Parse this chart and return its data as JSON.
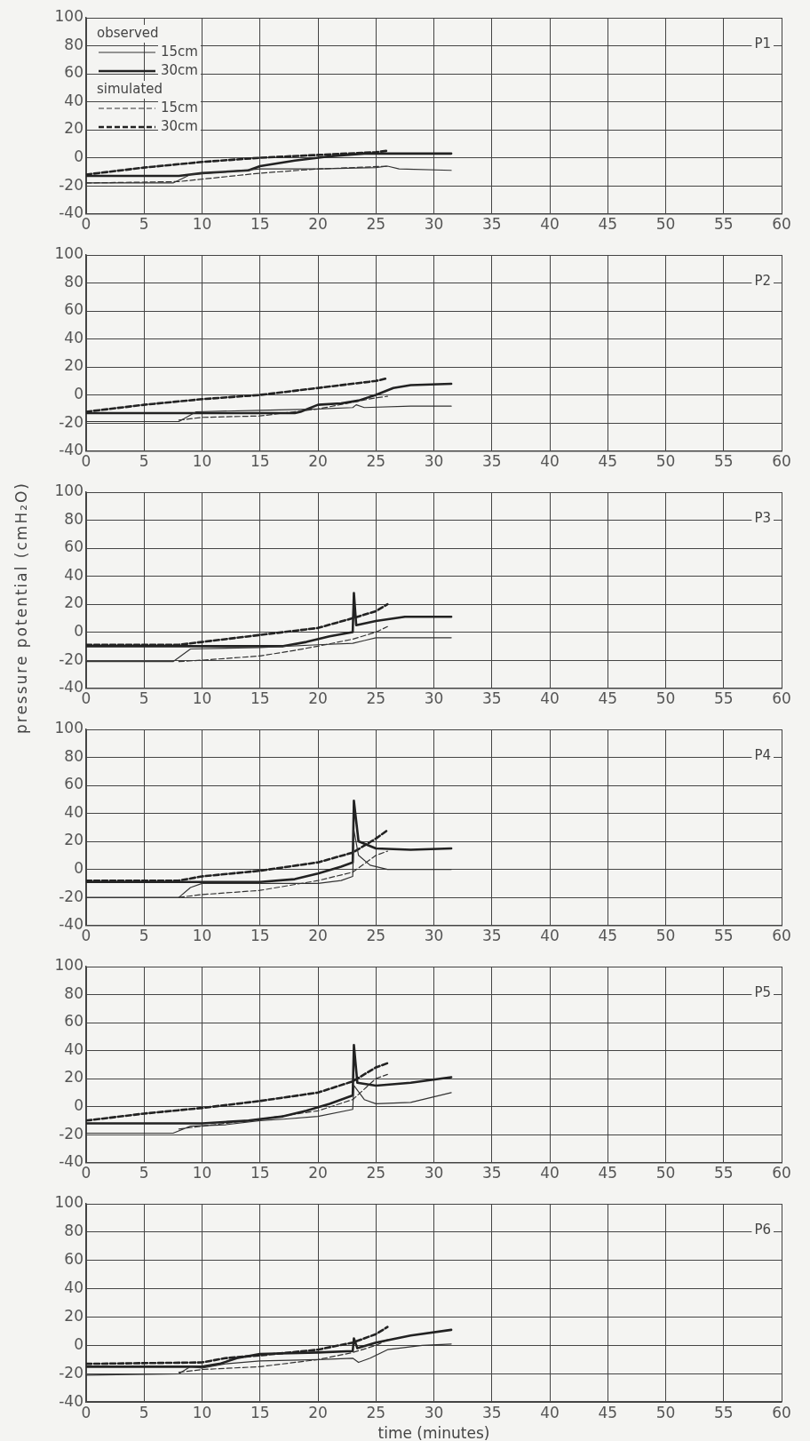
{
  "chart_data": [
    {
      "type": "line",
      "title": "P1",
      "xlim": [
        0,
        60
      ],
      "ylim": [
        -40,
        100
      ],
      "xticks": [
        0,
        5,
        10,
        15,
        20,
        25,
        30,
        35,
        40,
        45,
        50,
        55,
        60
      ],
      "yticks": [
        -40,
        -20,
        0,
        20,
        40,
        60,
        80,
        100
      ],
      "grid": true,
      "legend": "top left",
      "annotations": [
        "observed",
        "simulated"
      ],
      "series": [
        {
          "name": "15cm",
          "color": "#333333",
          "line_style": "solid",
          "x": [
            0,
            7.5,
            9,
            12,
            15,
            20,
            25,
            26,
            27,
            31.5
          ],
          "values": [
            -18,
            -18,
            -12,
            -10,
            -8,
            -8,
            -7,
            -6,
            -8,
            -9
          ]
        },
        {
          "name": "30cm",
          "color": "#222222",
          "line_style": "solid",
          "x": [
            0,
            8,
            10,
            14,
            15,
            18,
            21,
            24,
            31.5
          ],
          "values": [
            -13,
            -13,
            -11,
            -9,
            -6,
            -2,
            1,
            3,
            3
          ]
        },
        {
          "name": "15cm",
          "color": "#333333",
          "line_style": "dashed",
          "x": [
            0,
            8,
            15,
            20,
            26
          ],
          "values": [
            -18,
            -17,
            -11,
            -8,
            -6
          ]
        },
        {
          "name": "30cm",
          "color": "#222222",
          "line_style": "dashed",
          "x": [
            0,
            5,
            10,
            15,
            20,
            25,
            26
          ],
          "values": [
            -12,
            -7,
            -3,
            0,
            2,
            4,
            5
          ]
        }
      ]
    },
    {
      "type": "line",
      "title": "P2",
      "xlim": [
        0,
        60
      ],
      "ylim": [
        -40,
        100
      ],
      "xticks": [
        0,
        5,
        10,
        15,
        20,
        25,
        30,
        35,
        40,
        45,
        50,
        55,
        60
      ],
      "yticks": [
        -40,
        -20,
        0,
        20,
        40,
        60,
        80,
        100
      ],
      "grid": true,
      "series": [
        {
          "color": "#333333",
          "line_style": "solid",
          "x": [
            0,
            8,
            9.5,
            15,
            20,
            23,
            23.3,
            24,
            28,
            31.5
          ],
          "values": [
            -19,
            -19,
            -12,
            -11,
            -10,
            -9,
            -7,
            -9,
            -8,
            -8
          ]
        },
        {
          "color": "#222222",
          "line_style": "solid",
          "x": [
            0,
            18,
            18.5,
            20,
            22,
            23.5,
            25,
            26.5,
            28,
            31.5
          ],
          "values": [
            -13,
            -13,
            -12,
            -7,
            -6,
            -4,
            0,
            5,
            7,
            8
          ]
        },
        {
          "color": "#333333",
          "line_style": "dashed",
          "x": [
            8,
            10,
            15,
            20,
            25,
            26
          ],
          "values": [
            -18,
            -16,
            -15,
            -10,
            -2,
            -1
          ]
        },
        {
          "color": "#222222",
          "line_style": "dashed",
          "x": [
            0,
            5,
            10,
            15,
            20,
            25,
            26
          ],
          "values": [
            -12,
            -7,
            -3,
            0,
            5,
            10,
            12
          ]
        }
      ]
    },
    {
      "type": "line",
      "title": "P3",
      "ylabel": "pressure potential (cmH₂O)",
      "xlim": [
        0,
        60
      ],
      "ylim": [
        -40,
        100
      ],
      "xticks": [
        0,
        5,
        10,
        15,
        20,
        25,
        30,
        35,
        40,
        45,
        50,
        55,
        60
      ],
      "yticks": [
        -40,
        -20,
        0,
        20,
        40,
        60,
        80,
        100
      ],
      "grid": true,
      "series": [
        {
          "color": "#333333",
          "line_style": "solid",
          "x": [
            0,
            7.5,
            9,
            15,
            20,
            23,
            24,
            25,
            31.5
          ],
          "values": [
            -21,
            -21,
            -12,
            -11,
            -9,
            -8,
            -6,
            -4,
            -4
          ]
        },
        {
          "color": "#222222",
          "line_style": "solid",
          "x": [
            0,
            17,
            19,
            21,
            23,
            23.1,
            23.3,
            25,
            27.5,
            31.5
          ],
          "values": [
            -10,
            -10,
            -7,
            -3,
            0,
            28,
            5,
            8,
            11,
            11
          ]
        },
        {
          "color": "#333333",
          "line_style": "dashed",
          "x": [
            8,
            10,
            15,
            18,
            20,
            23,
            25,
            26
          ],
          "values": [
            -21,
            -20,
            -17,
            -13,
            -10,
            -5,
            0,
            4
          ]
        },
        {
          "color": "#222222",
          "line_style": "dashed",
          "x": [
            0,
            8,
            10,
            15,
            20,
            23,
            25,
            26
          ],
          "values": [
            -9,
            -9,
            -7,
            -2,
            3,
            10,
            15,
            20
          ]
        }
      ]
    },
    {
      "type": "line",
      "title": "P4",
      "xlim": [
        0,
        60
      ],
      "ylim": [
        -40,
        100
      ],
      "xticks": [
        0,
        5,
        10,
        15,
        20,
        25,
        30,
        35,
        40,
        45,
        50,
        55,
        60
      ],
      "yticks": [
        -40,
        -20,
        0,
        20,
        40,
        60,
        80,
        100
      ],
      "grid": true,
      "series": [
        {
          "color": "#333333",
          "line_style": "solid",
          "x": [
            0,
            8,
            9,
            10,
            20,
            22,
            23,
            23.1,
            23.5,
            24.5,
            26,
            31.5
          ],
          "values": [
            -20,
            -20,
            -13,
            -10,
            -10,
            -8,
            -5,
            28,
            10,
            3,
            0,
            0
          ]
        },
        {
          "color": "#222222",
          "line_style": "solid",
          "x": [
            0,
            15,
            18,
            20,
            22,
            23,
            23.1,
            23.5,
            25,
            28,
            31.5
          ],
          "values": [
            -9,
            -9,
            -7,
            -3,
            2,
            5,
            49,
            20,
            15,
            14,
            15
          ]
        },
        {
          "color": "#333333",
          "line_style": "dashed",
          "x": [
            8,
            10,
            15,
            20,
            23,
            25,
            26
          ],
          "values": [
            -20,
            -18,
            -15,
            -8,
            -2,
            10,
            13
          ]
        },
        {
          "color": "#222222",
          "line_style": "dashed",
          "x": [
            0,
            8,
            10,
            15,
            20,
            23,
            25,
            26
          ],
          "values": [
            -8,
            -8,
            -5,
            -1,
            5,
            12,
            22,
            28
          ]
        }
      ]
    },
    {
      "type": "line",
      "title": "P5",
      "xlim": [
        0,
        60
      ],
      "ylim": [
        -40,
        100
      ],
      "xticks": [
        0,
        5,
        10,
        15,
        20,
        25,
        30,
        35,
        40,
        45,
        50,
        55,
        60
      ],
      "yticks": [
        -40,
        -20,
        0,
        20,
        40,
        60,
        80,
        100
      ],
      "grid": true,
      "series": [
        {
          "color": "#333333",
          "line_style": "solid",
          "x": [
            0,
            7.5,
            9,
            12,
            15,
            17,
            20,
            23,
            23.1,
            24,
            25,
            28,
            31.5
          ],
          "values": [
            -19,
            -19,
            -14,
            -13,
            -10,
            -9,
            -7,
            -2,
            15,
            5,
            2,
            3,
            10
          ]
        },
        {
          "color": "#222222",
          "line_style": "solid",
          "x": [
            0,
            10,
            14,
            17,
            19,
            21,
            23,
            23.1,
            23.4,
            25,
            28,
            31.5
          ],
          "values": [
            -12,
            -12,
            -10,
            -7,
            -3,
            2,
            8,
            44,
            17,
            15,
            17,
            21
          ]
        },
        {
          "color": "#333333",
          "line_style": "dashed",
          "x": [
            8,
            10,
            15,
            20,
            23,
            25,
            26
          ],
          "values": [
            -16,
            -14,
            -9,
            -3,
            5,
            20,
            23
          ]
        },
        {
          "color": "#222222",
          "line_style": "dashed",
          "x": [
            0,
            5,
            10,
            15,
            20,
            23,
            25,
            26
          ],
          "values": [
            -10,
            -5,
            -1,
            4,
            10,
            18,
            28,
            31
          ]
        }
      ]
    },
    {
      "type": "line",
      "title": "P6",
      "xlabel": "time (minutes)",
      "xlim": [
        0,
        60
      ],
      "ylim": [
        -40,
        100
      ],
      "xticks": [
        0,
        5,
        10,
        15,
        20,
        25,
        30,
        35,
        40,
        45,
        50,
        55,
        60
      ],
      "yticks": [
        -40,
        -20,
        0,
        20,
        40,
        60,
        80,
        100
      ],
      "grid": true,
      "series": [
        {
          "color": "#333333",
          "line_style": "solid",
          "x": [
            0,
            8,
            9,
            10,
            12,
            15,
            20,
            23,
            23.5,
            24.5,
            26,
            29,
            31.5
          ],
          "values": [
            -21,
            -20,
            -15,
            -16,
            -13,
            -11,
            -10,
            -9,
            -12,
            -9,
            -3,
            0,
            1
          ]
        },
        {
          "color": "#222222",
          "line_style": "solid",
          "x": [
            0,
            10,
            11.5,
            13,
            15,
            20,
            23,
            23.1,
            23.4,
            25,
            28,
            31.5
          ],
          "values": [
            -15,
            -15,
            -13,
            -9,
            -6,
            -5,
            -4,
            5,
            -2,
            2,
            7,
            11
          ]
        },
        {
          "color": "#333333",
          "line_style": "dashed",
          "x": [
            8,
            10,
            15,
            20,
            23,
            25,
            26
          ],
          "values": [
            -19,
            -17,
            -15,
            -10,
            -5,
            0,
            4
          ]
        },
        {
          "color": "#222222",
          "line_style": "dashed",
          "x": [
            0,
            10,
            12,
            15,
            20,
            23,
            25,
            26
          ],
          "values": [
            -13,
            -12,
            -9,
            -7,
            -3,
            2,
            8,
            13
          ]
        }
      ]
    }
  ]
}
